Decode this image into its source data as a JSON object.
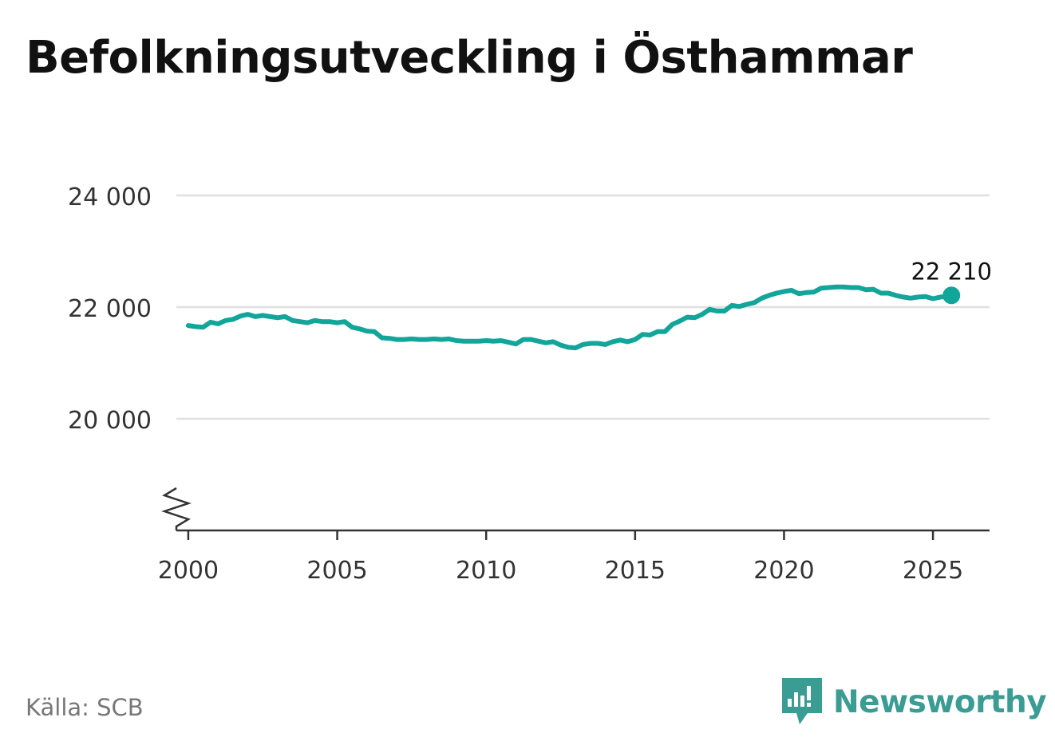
{
  "title": "Befolkningsutveckling i Östhammar",
  "source": "Källa: SCB",
  "brand": {
    "name": "Newsworthy",
    "color": "#3a9c93",
    "icon": "newsworthy-logo-icon"
  },
  "colors": {
    "line": "#12a59a",
    "grid": "#e0e0e0",
    "axis": "#333333"
  },
  "chart_data": {
    "type": "line",
    "title": "Befolkningsutveckling i Östhammar",
    "xlabel": "",
    "ylabel": "",
    "xlim": [
      1999.6,
      2026.9
    ],
    "ylim": [
      18000,
      25000
    ],
    "y_axis_break": true,
    "grid": "horizontal",
    "y_ticks": [
      20000,
      22000,
      24000
    ],
    "y_tick_labels": [
      "20 000",
      "22 000",
      "24 000"
    ],
    "x_ticks": [
      2000,
      2005,
      2010,
      2015,
      2020,
      2025
    ],
    "x_tick_labels": [
      "2000",
      "2005",
      "2010",
      "2015",
      "2020",
      "2025"
    ],
    "series": [
      {
        "x": [
          2000.0,
          2000.25,
          2000.5,
          2000.75,
          2001.0,
          2001.25,
          2001.5,
          2001.75,
          2002.0,
          2002.25,
          2002.5,
          2002.75,
          2003.0,
          2003.25,
          2003.5,
          2003.75,
          2004.0,
          2004.25,
          2004.5,
          2004.75,
          2005.0,
          2005.25,
          2005.5,
          2005.75,
          2006.0,
          2006.25,
          2006.5,
          2006.75,
          2007.0,
          2007.25,
          2007.5,
          2007.75,
          2008.0,
          2008.25,
          2008.5,
          2008.75,
          2009.0,
          2009.25,
          2009.5,
          2009.75,
          2010.0,
          2010.25,
          2010.5,
          2010.75,
          2011.0,
          2011.25,
          2011.5,
          2011.75,
          2012.0,
          2012.25,
          2012.5,
          2012.75,
          2013.0,
          2013.25,
          2013.5,
          2013.75,
          2014.0,
          2014.25,
          2014.5,
          2014.75,
          2015.0,
          2015.25,
          2015.5,
          2015.75,
          2016.0,
          2016.25,
          2016.5,
          2016.75,
          2017.0,
          2017.25,
          2017.5,
          2017.75,
          2018.0,
          2018.25,
          2018.5,
          2018.75,
          2019.0,
          2019.25,
          2019.5,
          2019.75,
          2020.0,
          2020.25,
          2020.5,
          2020.75,
          2021.0,
          2021.25,
          2021.5,
          2021.75,
          2022.0,
          2022.25,
          2022.5,
          2022.75,
          2023.0,
          2023.25,
          2023.5,
          2023.75,
          2024.0,
          2024.25,
          2024.5,
          2024.75,
          2025.0,
          2025.25,
          2025.5,
          2025.62
        ],
        "values": [
          21670,
          21650,
          21640,
          21730,
          21700,
          21760,
          21780,
          21840,
          21870,
          21830,
          21850,
          21830,
          21810,
          21830,
          21760,
          21740,
          21720,
          21760,
          21740,
          21740,
          21720,
          21740,
          21640,
          21610,
          21570,
          21560,
          21450,
          21440,
          21420,
          21420,
          21430,
          21420,
          21420,
          21430,
          21420,
          21430,
          21400,
          21390,
          21390,
          21390,
          21400,
          21390,
          21400,
          21370,
          21340,
          21420,
          21420,
          21390,
          21360,
          21380,
          21320,
          21280,
          21270,
          21330,
          21350,
          21350,
          21330,
          21380,
          21410,
          21380,
          21420,
          21510,
          21500,
          21560,
          21560,
          21690,
          21750,
          21820,
          21810,
          21870,
          21960,
          21930,
          21930,
          22030,
          22010,
          22050,
          22080,
          22160,
          22210,
          22250,
          22280,
          22300,
          22240,
          22260,
          22270,
          22340,
          22350,
          22360,
          22360,
          22350,
          22350,
          22310,
          22320,
          22250,
          22250,
          22210,
          22180,
          22160,
          22180,
          22190,
          22150,
          22180,
          22190,
          22210
        ]
      }
    ],
    "annotations": [
      {
        "x": 2025.62,
        "y": 22210,
        "label": "22 210"
      }
    ]
  }
}
